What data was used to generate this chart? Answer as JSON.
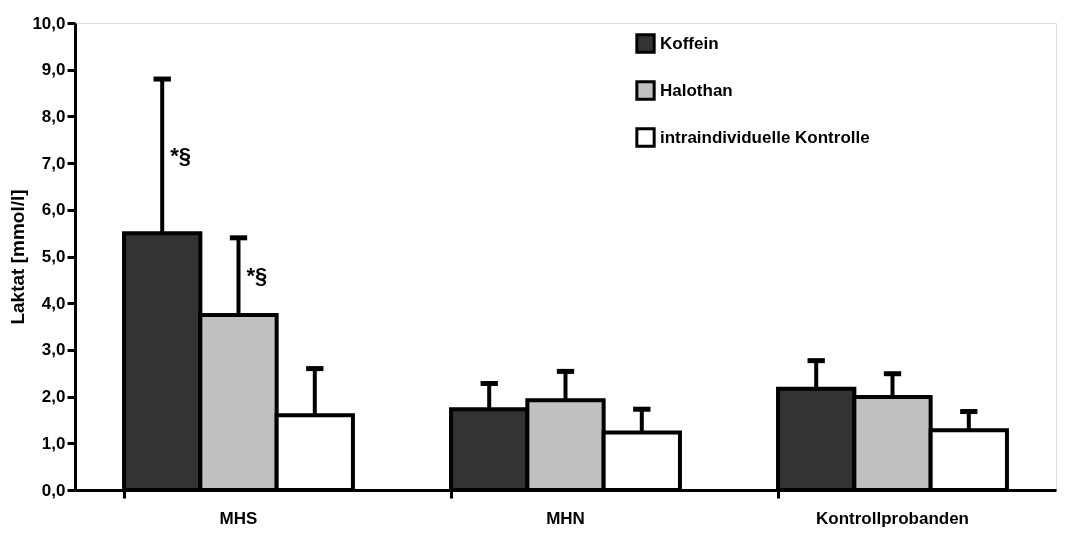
{
  "chart_data": {
    "type": "bar",
    "ylabel": "Laktat [mmol/l]",
    "categories": [
      "MHS",
      "MHN",
      "Kontrollprobanden"
    ],
    "series": [
      {
        "name": "Koffein",
        "color": "#333333",
        "values": [
          5.5,
          1.73,
          2.17
        ],
        "errors": [
          3.3,
          0.55,
          0.6
        ]
      },
      {
        "name": "Halothan",
        "color": "#c0c0c0",
        "values": [
          3.75,
          1.92,
          1.99
        ],
        "errors": [
          1.65,
          0.62,
          0.5
        ]
      },
      {
        "name": "intraindividuelle Kontrolle",
        "color": "#ffffff",
        "values": [
          1.6,
          1.23,
          1.28
        ],
        "errors": [
          1.0,
          0.5,
          0.4
        ]
      }
    ],
    "ylim": [
      0,
      10
    ],
    "yticks": [
      {
        "value": 0,
        "label": "0,0"
      },
      {
        "value": 1,
        "label": "1,0"
      },
      {
        "value": 2,
        "label": "2,0"
      },
      {
        "value": 3,
        "label": "3,0"
      },
      {
        "value": 4,
        "label": "4,0"
      },
      {
        "value": 5,
        "label": "5,0"
      },
      {
        "value": 6,
        "label": "6,0"
      },
      {
        "value": 7,
        "label": "7,0"
      },
      {
        "value": 8,
        "label": "8,0"
      },
      {
        "value": 9,
        "label": "9,0"
      },
      {
        "value": 10,
        "label": "10,0"
      }
    ],
    "annotations": [
      "*§",
      "*§"
    ],
    "legend": "top right",
    "grid": false
  }
}
